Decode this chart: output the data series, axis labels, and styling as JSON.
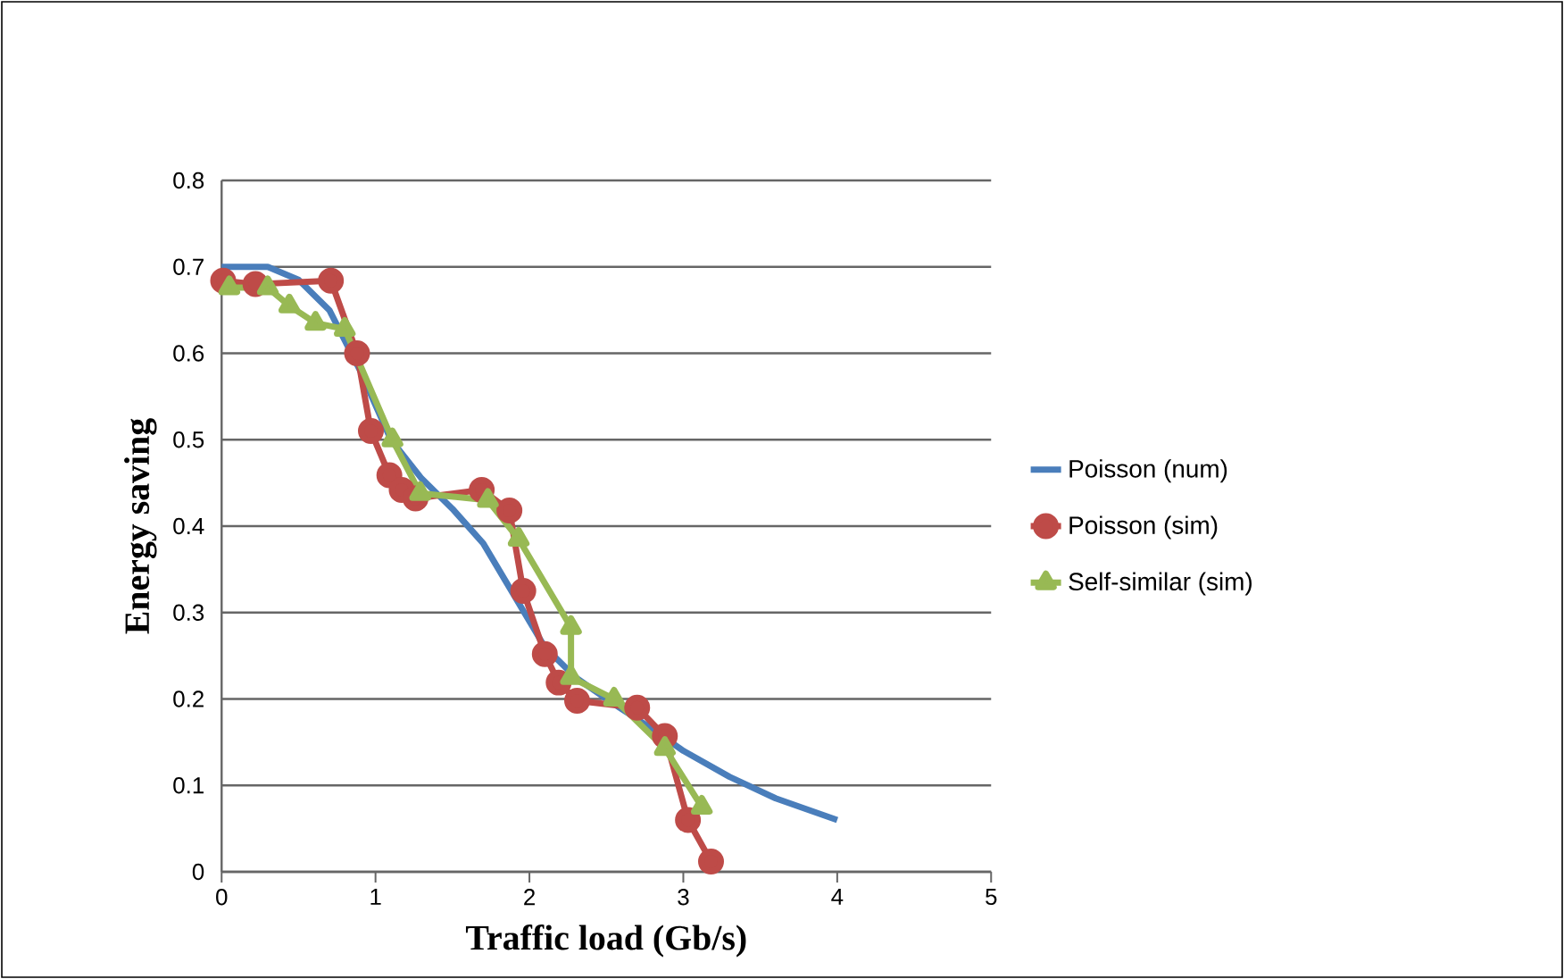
{
  "chart_data": {
    "type": "line",
    "xlabel": "Traffic load (Gb/s)",
    "ylabel": "Energy saving",
    "xlim": [
      0,
      5
    ],
    "xticks": [
      0,
      1,
      2,
      3,
      4,
      5
    ],
    "ylim": [
      0,
      0.8
    ],
    "yticks": [
      0,
      0.1,
      0.2,
      0.3,
      0.4,
      0.5,
      0.6,
      0.7,
      0.8
    ],
    "grid": "y",
    "legend": "right",
    "series": [
      {
        "name": "Poisson (num)",
        "color": "#4a7ebb",
        "marker": "none",
        "x": [
          0,
          0.3,
          0.5,
          0.7,
          0.9,
          1.1,
          1.3,
          1.5,
          1.7,
          1.9,
          2.1,
          2.3,
          2.5,
          2.8,
          3.0,
          3.3,
          3.6,
          4.0
        ],
        "values": [
          0.7,
          0.7,
          0.685,
          0.65,
          0.58,
          0.5,
          0.455,
          0.42,
          0.38,
          0.32,
          0.26,
          0.225,
          0.2,
          0.165,
          0.14,
          0.11,
          0.085,
          0.06
        ]
      },
      {
        "name": "Poisson (sim)",
        "color": "#be4b48",
        "marker": "circle",
        "x": [
          0.01,
          0.22,
          0.71,
          0.88,
          0.97,
          1.09,
          1.17,
          1.26,
          1.69,
          1.87,
          1.96,
          2.1,
          2.19,
          2.31,
          2.7,
          2.88,
          3.03,
          3.18
        ],
        "values": [
          0.684,
          0.68,
          0.684,
          0.6,
          0.51,
          0.459,
          0.442,
          0.432,
          0.442,
          0.418,
          0.325,
          0.252,
          0.219,
          0.198,
          0.19,
          0.157,
          0.06,
          0.012
        ]
      },
      {
        "name": "Self-similar (sim)",
        "color": "#98b954",
        "marker": "triangle",
        "x": [
          0.05,
          0.3,
          0.44,
          0.61,
          0.8,
          1.11,
          1.29,
          1.73,
          1.93,
          2.27,
          2.27,
          2.55,
          2.88,
          3.12
        ],
        "values": [
          0.676,
          0.676,
          0.655,
          0.635,
          0.628,
          0.5,
          0.438,
          0.43,
          0.385,
          0.283,
          0.225,
          0.2,
          0.143,
          0.075
        ]
      }
    ]
  }
}
